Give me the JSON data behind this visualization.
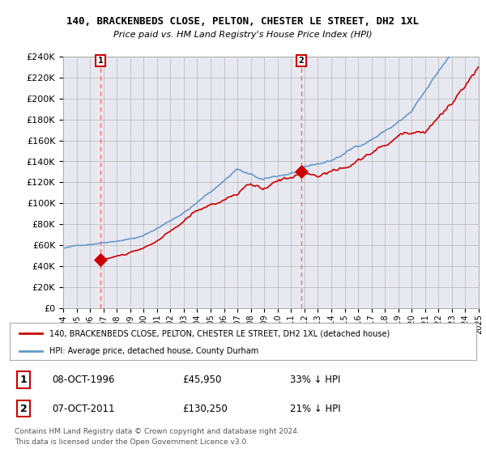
{
  "title": "140, BRACKENBEDS CLOSE, PELTON, CHESTER LE STREET, DH2 1XL",
  "subtitle": "Price paid vs. HM Land Registry's House Price Index (HPI)",
  "legend_line1": "140, BRACKENBEDS CLOSE, PELTON, CHESTER LE STREET, DH2 1XL (detached house)",
  "legend_line2": "HPI: Average price, detached house, County Durham",
  "footnote1": "Contains HM Land Registry data © Crown copyright and database right 2024.",
  "footnote2": "This data is licensed under the Open Government Licence v3.0.",
  "purchase1_date": "08-OCT-1996",
  "purchase1_price": "£45,950",
  "purchase1_hpi": "33% ↓ HPI",
  "purchase2_date": "07-OCT-2011",
  "purchase2_price": "£130,250",
  "purchase2_hpi": "21% ↓ HPI",
  "xmin": 1994,
  "xmax": 2025,
  "ymin": 0,
  "ymax": 240000,
  "yticks": [
    0,
    20000,
    40000,
    60000,
    80000,
    100000,
    120000,
    140000,
    160000,
    180000,
    200000,
    220000,
    240000
  ],
  "purchase1_x": 1996.77,
  "purchase1_y": 45950,
  "purchase2_x": 2011.77,
  "purchase2_y": 130250,
  "line_color_red": "#cc0000",
  "line_color_blue": "#6699cc",
  "marker_color": "#cc0000",
  "dashed_line_color": "#ff6666",
  "grid_color": "#aaaaaa"
}
